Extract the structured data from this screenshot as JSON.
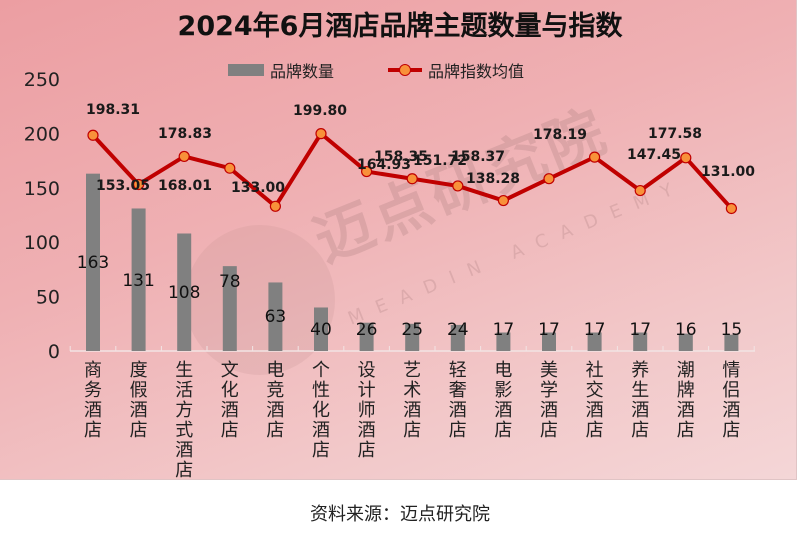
{
  "chart_data": {
    "type": "bar+line",
    "title": "2024年6月酒店品牌主题数量与指数",
    "categories": [
      "商务酒店",
      "度假酒店",
      "生活方式酒店",
      "文化酒店",
      "电竞酒店",
      "个性化酒店",
      "设计师酒店",
      "艺术酒店",
      "轻奢酒店",
      "电影酒店",
      "美学酒店",
      "社交酒店",
      "养生酒店",
      "潮牌酒店",
      "情侣酒店"
    ],
    "series": [
      {
        "name": "品牌数量",
        "type": "bar",
        "color": "#808080",
        "values": [
          163,
          131,
          108,
          78,
          63,
          40,
          26,
          25,
          24,
          17,
          17,
          17,
          17,
          16,
          15
        ]
      },
      {
        "name": "品牌指数均值",
        "type": "line",
        "color": "#c00000",
        "marker_color": "#f8913a",
        "values": [
          198.31,
          153.05,
          178.83,
          168.01,
          133.0,
          199.8,
          164.93,
          158.35,
          151.72,
          138.28,
          158.37,
          178.19,
          147.45,
          177.58,
          131.0
        ]
      }
    ],
    "xlabel": "",
    "ylabel": "",
    "ylim": [
      0,
      250
    ],
    "yticks": [
      0,
      50,
      100,
      150,
      200,
      250
    ],
    "grid": false,
    "legend_position": "top"
  },
  "legend": {
    "bar_label": "品牌数量",
    "line_label": "品牌指数均值"
  },
  "watermark": {
    "main": "迈点研究院",
    "sub": "MEADIN ACADEMY"
  },
  "source": "资料来源：迈点研究院",
  "colors": {
    "bar": "#808080",
    "line": "#c00000",
    "marker": "#f8913a",
    "background_start": "#ec9ea2",
    "background_end": "#f4d6d7"
  }
}
